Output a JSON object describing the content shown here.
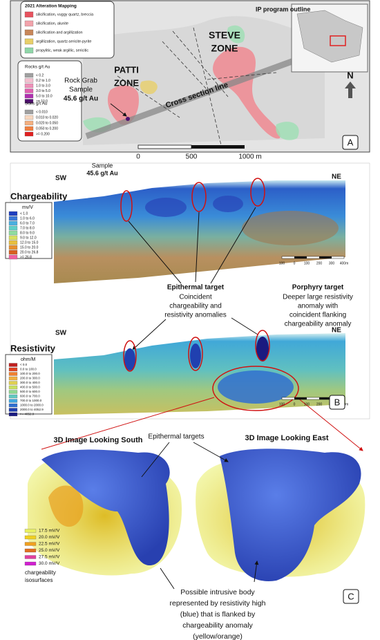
{
  "panel_a": {
    "alteration_legend": {
      "title": "2021 Alteration Mapping",
      "items": [
        {
          "label": "silicification, vuggy quartz, breccia",
          "color": "#e8535f"
        },
        {
          "label": "silicification, alunite",
          "color": "#f2a3ab"
        },
        {
          "label": "silicification and argillization",
          "color": "#c8875a"
        },
        {
          "label": "argillization, quartz-sericite-pyrite",
          "color": "#e8cf6a"
        },
        {
          "label": "propylitic, weak argillic, sericitic",
          "color": "#8fd6a8"
        }
      ]
    },
    "rocks_legend": {
      "title": "Rocks g/t Au",
      "items": [
        {
          "label": "< 0.2",
          "color": "#a0a0a0"
        },
        {
          "label": "0.2 to 1.0",
          "color": "#f4c0d0"
        },
        {
          "label": "1.0 to 3.0",
          "color": "#ee90b8"
        },
        {
          "label": "3.0 to 5.0",
          "color": "#e060b0"
        },
        {
          "label": "5.0 to 10.0",
          "color": "#b030b0"
        },
        {
          "label": ">= 10.0",
          "color": "#501070"
        }
      ]
    },
    "soils_legend": {
      "title": "Soils g/t Au",
      "items": [
        {
          "label": "< 0.010",
          "color": "#a0a0a0"
        },
        {
          "label": "0.010 to 0.020",
          "color": "#f8d8c0"
        },
        {
          "label": "0.020 to 0.050",
          "color": "#f4b080"
        },
        {
          "label": "0.050 to 0.200",
          "color": "#f08040"
        },
        {
          "label": ">= 0.200",
          "color": "#e02020"
        }
      ]
    },
    "ip_outline_label": "IP program outline",
    "steve_zone": [
      "STEVE",
      "ZONE"
    ],
    "patti_zone": [
      "PATTI",
      "ZONE"
    ],
    "rock_grab": [
      "Rock Grab",
      "Sample",
      "45.6 g/t Au"
    ],
    "cross_section_label": "Cross section line",
    "scale_labels": [
      "0",
      "500",
      "1000 m"
    ],
    "north": "N",
    "panel_label": "A"
  },
  "panel_b": {
    "sample_label": [
      "Sample",
      "45.6 g/t Au"
    ],
    "chargeability": {
      "title": "Chargeability",
      "sw": "SW",
      "ne": "NE",
      "legend": {
        "title": "mv/V",
        "items": [
          {
            "label": "< 1.0",
            "color": "#1f3fbf"
          },
          {
            "label": "1.0 to 6.0",
            "color": "#3a78d8"
          },
          {
            "label": "6.0 to 7.0",
            "color": "#4ab0e0"
          },
          {
            "label": "7.0 to 8.0",
            "color": "#5fd0c8"
          },
          {
            "label": "8.0 to 9.0",
            "color": "#8fdca0"
          },
          {
            "label": "9.0 to 12.0",
            "color": "#d8e060"
          },
          {
            "label": "12.0 to 15.0",
            "color": "#e8c040"
          },
          {
            "label": "15.0 to 20.0",
            "color": "#e89030"
          },
          {
            "label": "20.0 to 26.8",
            "color": "#d86020"
          },
          {
            "label": ">= 26.8",
            "color": "#f060a0"
          }
        ]
      },
      "scale_labels": [
        "100",
        "0",
        "100",
        "200",
        "300",
        "400m"
      ]
    },
    "epithermal": {
      "title": "Epithermal target",
      "lines": [
        "Coincident",
        "chargeability and",
        "resistivity anomalies"
      ]
    },
    "porphyry": {
      "title": "Porphyry target",
      "lines": [
        "Deeper large resistivity",
        "anomaly with",
        "coincident flanking",
        "chargeability anomaly"
      ]
    },
    "resistivity": {
      "title": "Resistivity",
      "sw": "SW",
      "ne": "NE",
      "legend": {
        "title": "ohm/M",
        "items": [
          {
            "label": "< 0.0",
            "color": "#c02020"
          },
          {
            "label": "0.0 to 100.0",
            "color": "#e04020"
          },
          {
            "label": "100.0 to 200.0",
            "color": "#f08030"
          },
          {
            "label": "200.0 to 300.0",
            "color": "#f0b040"
          },
          {
            "label": "300.0 to 400.0",
            "color": "#e0d050"
          },
          {
            "label": "400.0 to 500.0",
            "color": "#c8e060"
          },
          {
            "label": "500.0 to 600.0",
            "color": "#90d890"
          },
          {
            "label": "600.0 to 700.0",
            "color": "#60c8c0"
          },
          {
            "label": "700.0 to 1000.0",
            "color": "#40a8e0"
          },
          {
            "label": "1000.0 to 2000.0",
            "color": "#3070d0"
          },
          {
            "label": "2000.0 to 4052.9",
            "color": "#2040b0"
          },
          {
            "label": ">= 4052.9",
            "color": "#1a1a80"
          }
        ]
      },
      "scale_labels": [
        "100",
        "0",
        "100",
        "200",
        "300",
        "400m"
      ]
    },
    "panel_label": "B"
  },
  "panel_c": {
    "south_title": "3D Image Looking South",
    "epithermal_targets": "Epithermal targets",
    "east_title": "3D Image Looking East",
    "iso_legend": {
      "items": [
        {
          "label": "17.5 mV/V",
          "color": "#e8f060"
        },
        {
          "label": "20.0 mV/V",
          "color": "#f0d020"
        },
        {
          "label": "22.5 mV/V",
          "color": "#f0a020"
        },
        {
          "label": "25.0 mV/V",
          "color": "#e07020"
        },
        {
          "label": "27.5 mV/V",
          "color": "#e040a0"
        },
        {
          "label": "30.0 mV/V",
          "color": "#d020d0"
        }
      ],
      "caption": [
        "chargeability",
        "isosurfaces"
      ]
    },
    "intrusive_note": [
      "Possible intrusive body",
      "represented by resistivity high",
      "(blue) that is flanked by",
      "chargeability anomaly",
      "(yellow/orange)"
    ],
    "panel_label": "C"
  }
}
